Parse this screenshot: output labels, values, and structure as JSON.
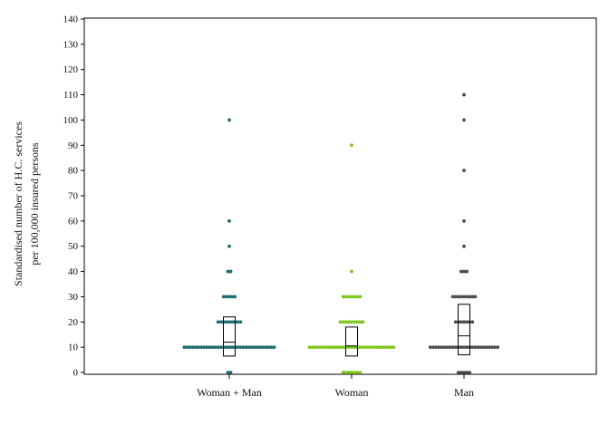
{
  "chart_data": {
    "type": "scatter",
    "subtype": "dot-strip with box",
    "ylabel_line1": "Standardised number of H.C. services",
    "ylabel_line2": "per 100,000 insured persons",
    "ylim": [
      0,
      140
    ],
    "yticks": [
      0,
      10,
      20,
      30,
      40,
      50,
      60,
      70,
      80,
      90,
      100,
      110,
      120,
      130,
      140
    ],
    "grid": false,
    "legend": "none",
    "categories": [
      "Woman + Man",
      "Woman",
      "Man"
    ],
    "series": [
      {
        "category": "Woman + Man",
        "color": "#1e6b73",
        "points": [
          {
            "value": 0,
            "count": 2
          },
          {
            "value": 10,
            "count": 33
          },
          {
            "value": 20,
            "count": 9
          },
          {
            "value": 30,
            "count": 5
          },
          {
            "value": 40,
            "count": 2
          },
          {
            "value": 50,
            "count": 1
          },
          {
            "value": 60,
            "count": 1
          },
          {
            "value": 100,
            "count": 1
          }
        ],
        "box": {
          "q1": 6.5,
          "median": 12,
          "q3": 22
        }
      },
      {
        "category": "Woman",
        "color": "#7ec71f",
        "points": [
          {
            "value": 0,
            "count": 7
          },
          {
            "value": 10,
            "count": 31
          },
          {
            "value": 20,
            "count": 9
          },
          {
            "value": 30,
            "count": 7
          },
          {
            "value": 40,
            "count": 1
          },
          {
            "value": 90,
            "count": 1
          }
        ],
        "box": {
          "q1": 6.5,
          "median": 10.5,
          "q3": 18
        }
      },
      {
        "category": "Man",
        "color": "#4d4d4d",
        "points": [
          {
            "value": 0,
            "count": 5
          },
          {
            "value": 10,
            "count": 25
          },
          {
            "value": 20,
            "count": 7
          },
          {
            "value": 30,
            "count": 9
          },
          {
            "value": 40,
            "count": 3
          },
          {
            "value": 50,
            "count": 1
          },
          {
            "value": 60,
            "count": 1
          },
          {
            "value": 80,
            "count": 1
          },
          {
            "value": 100,
            "count": 1
          },
          {
            "value": 110,
            "count": 1
          }
        ],
        "box": {
          "q1": 7,
          "median": 14.5,
          "q3": 27
        }
      }
    ]
  }
}
